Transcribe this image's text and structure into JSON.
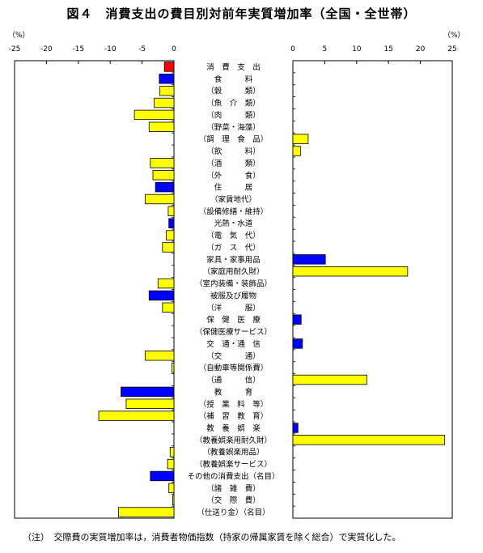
{
  "page": {
    "title": "図４　消費支出の費目別対前年実質増加率（全国・全世帯）",
    "left_unit": "（%）",
    "right_unit": "（%）",
    "note": "（注）　交際費の実質増加率は，消費者物価指数（持家の帰属家賃を除く総合）で実質化した。"
  },
  "colors": {
    "total": "#ff0000",
    "major": "#0000ff",
    "sub": "#ffff00",
    "outline": "#000000"
  },
  "chart_data": {
    "type": "bar",
    "orientation": "horizontal",
    "title": "図４　消費支出の費目別対前年実質増加率（全国・全世帯）",
    "unit": "%",
    "left_axis": {
      "xlim": [
        -25,
        0
      ],
      "ticks": [
        -25,
        -20,
        -15,
        -10,
        -5,
        0
      ]
    },
    "right_axis": {
      "xlim": [
        0,
        25
      ],
      "ticks": [
        0,
        5,
        10,
        15,
        20,
        25
      ]
    },
    "categories": [
      "消　費　支　出",
      "食　　　料",
      "（穀　　　類）",
      "（魚　介　類）",
      "（肉　　　類）",
      "（野菜・海藻）",
      "（調　理　食　品）",
      "（飲　　　料）",
      "（酒　　　類）",
      "（外　　　食）",
      "住　　　居",
      "（家賃地代）",
      "（設備修繕・維持）",
      "光熱・水道",
      "（電　気　代）",
      "（ガ　ス　代）",
      "家具・家事用品",
      "（家庭用耐久財）",
      "（室内装備・装飾品）",
      "被服及び履物",
      "（洋　　　服）",
      "保　健　医　療",
      "（保健医療サービス）",
      "交　通・通　信",
      "（交　　　通）",
      "（自動車等関係費）",
      "（通　　　信）",
      "教　　　育",
      "（授　業　料　等）",
      "（補　習　教　育）",
      "教　養　娯　楽",
      "（教養娯楽用耐久財）",
      "（教養娯楽用品）",
      "（教養娯楽サービス）",
      "その他の消費支出（名目）",
      "（諸　雑　費）",
      "（交　際　費）",
      "（仕送り金）（名目）"
    ],
    "levels": [
      "total",
      "major",
      "sub",
      "sub",
      "sub",
      "sub",
      "sub",
      "sub",
      "sub",
      "sub",
      "major",
      "sub",
      "sub",
      "major",
      "sub",
      "sub",
      "major",
      "sub",
      "sub",
      "major",
      "sub",
      "major",
      "sub",
      "major",
      "sub",
      "sub",
      "sub",
      "major",
      "sub",
      "sub",
      "major",
      "sub",
      "sub",
      "sub",
      "major",
      "sub",
      "sub",
      "sub"
    ],
    "values": [
      -1.5,
      -2.3,
      -2.2,
      -3.1,
      -6.2,
      -3.9,
      2.4,
      1.2,
      -3.7,
      -3.3,
      -2.9,
      -4.5,
      -0.9,
      -0.8,
      -1.2,
      -1.8,
      5.1,
      18.0,
      -2.5,
      -3.9,
      -1.8,
      1.3,
      0.0,
      1.5,
      -4.5,
      -0.3,
      11.6,
      -8.3,
      -7.5,
      -11.8,
      0.8,
      23.8,
      -0.6,
      -1.0,
      -3.7,
      -0.8,
      -0.2,
      -8.7
    ]
  }
}
